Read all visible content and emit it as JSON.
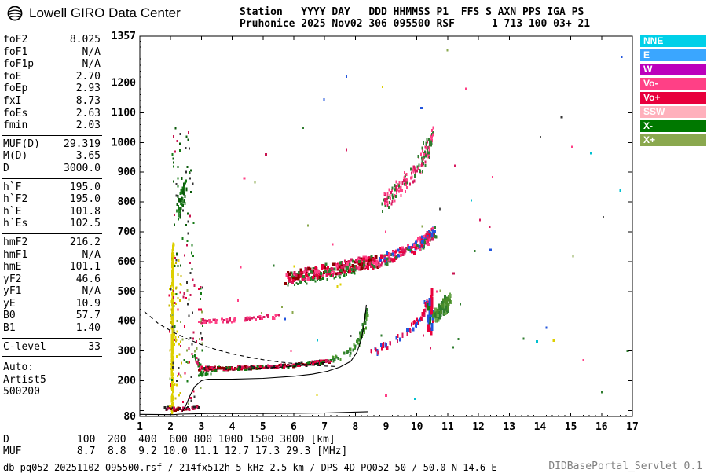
{
  "header": {
    "logo_title": "Lowell GIRO Data Center",
    "station_line1": "Station   YYYY DAY   DDD HHMMSS P1  FFS S AXN PPS IGA PS",
    "station_line2": "Pruhonice 2025 Nov02 306 095500 RSF      1 713 100 03+ 21"
  },
  "params": {
    "groups": [
      {
        "items": [
          {
            "label": "foF2",
            "value": "8.025"
          },
          {
            "label": "foF1",
            "value": "N/A"
          },
          {
            "label": "foF1p",
            "value": "N/A"
          },
          {
            "label": "foE",
            "value": "2.70"
          },
          {
            "label": "foEp",
            "value": "2.93"
          },
          {
            "label": "fxI",
            "value": "8.73"
          },
          {
            "label": "foEs",
            "value": "2.63"
          },
          {
            "label": "fmin",
            "value": "2.03"
          }
        ]
      },
      {
        "items": [
          {
            "label": "MUF(D)",
            "value": "29.319"
          },
          {
            "label": "M(D)",
            "value": "3.65"
          },
          {
            "label": "D",
            "value": "3000.0"
          }
        ]
      },
      {
        "items": [
          {
            "label": "h`F",
            "value": "195.0"
          },
          {
            "label": "h`F2",
            "value": "195.0"
          },
          {
            "label": "h`E",
            "value": "101.8"
          },
          {
            "label": "h`Es",
            "value": "102.5"
          }
        ]
      },
      {
        "items": [
          {
            "label": "hmF2",
            "value": "216.2"
          },
          {
            "label": "hmF1",
            "value": "N/A"
          },
          {
            "label": "hmE",
            "value": "101.1"
          },
          {
            "label": "yF2",
            "value": "46.6"
          },
          {
            "label": "yF1",
            "value": "N/A"
          },
          {
            "label": "yE",
            "value": "10.9"
          },
          {
            "label": "B0",
            "value": "57.7"
          },
          {
            "label": "B1",
            "value": "1.40"
          }
        ]
      },
      {
        "items": [
          {
            "label": "C-level",
            "value": "33"
          }
        ]
      }
    ],
    "auto_block": [
      "Auto:",
      "Artist5",
      "500200"
    ]
  },
  "legend": {
    "items": [
      {
        "label": "NNE",
        "color": "#00d0e8"
      },
      {
        "label": "E",
        "color": "#3aa6ff"
      },
      {
        "label": "W",
        "color": "#bc00bc"
      },
      {
        "label": "Vo-",
        "color": "#ff4086"
      },
      {
        "label": "Vo+",
        "color": "#e8003c"
      },
      {
        "label": "SSW",
        "color": "#ffb0bc"
      },
      {
        "label": "X-",
        "color": "#007800"
      },
      {
        "label": "X+",
        "color": "#8aa84e"
      }
    ]
  },
  "distance_muf": {
    "d_line": "D           100  200  400  600 800 1000 1500 3000 [km]",
    "muf_line": "MUF         8.7  8.8  9.2 10.0 11.1 12.7 17.3 29.3 [MHz]"
  },
  "footer": {
    "left": "db pq052 20251102 095500.rsf / 214fx512h 5 kHz 2.5 km / DPS-4D PQ052 50 / 50.0 N 14.6 E",
    "right": "DIDBasePortal_Servlet 0.1"
  },
  "chart_data": {
    "type": "scatter",
    "title": "Pruhonice ionogram 2025 Nov02 306 095500",
    "x_unit": "MHz",
    "y_unit": "km",
    "xlim": [
      1,
      17
    ],
    "ylim": [
      80,
      1357
    ],
    "x_ticks": [
      1,
      2,
      3,
      4,
      5,
      6,
      7,
      8,
      9,
      10,
      11,
      12,
      13,
      14,
      15,
      16,
      17
    ],
    "y_tick_labels": [
      1357,
      1200,
      1100,
      1000,
      900,
      800,
      700,
      600,
      500,
      400,
      300,
      200,
      80
    ],
    "grid": false,
    "legend_position": "right-outside",
    "muf_table": {
      "distance_km": [
        100,
        200,
        400,
        600,
        800,
        1000,
        1500,
        3000
      ],
      "muf_mhz": [
        8.7,
        8.8,
        9.2,
        10.0,
        11.1,
        12.7,
        17.3,
        29.3
      ]
    },
    "clusters": [
      {
        "name": "interference-column",
        "colors": [
          "#ddcf00"
        ],
        "size": [
          2,
          4
        ],
        "n": 300,
        "path": [
          [
            2.05,
            95
          ],
          [
            2.08,
            660
          ]
        ],
        "jitter": [
          0.03,
          6
        ]
      },
      {
        "name": "interference-scatter",
        "colors": [
          "#ddcf00",
          "#c8b800"
        ],
        "size": [
          2,
          3
        ],
        "n": 55,
        "box": [
          1.95,
          95,
          2.35,
          620
        ]
      },
      {
        "name": "noise-low",
        "colors": [
          "#157a15",
          "#c81450",
          "#333333",
          "#8aa84e",
          "#e8003c"
        ],
        "size": [
          2,
          3
        ],
        "n": 90,
        "box": [
          1.95,
          100,
          3.05,
          520
        ]
      },
      {
        "name": "noise-high",
        "colors": [
          "#157a15",
          "#0a5a0a",
          "#c81450",
          "#333333"
        ],
        "size": [
          2,
          3
        ],
        "n": 60,
        "box": [
          2.05,
          520,
          2.75,
          1060
        ]
      },
      {
        "name": "green-patch-800",
        "colors": [
          "#157a15",
          "#0a5a0a",
          "#3a8c3a"
        ],
        "size": [
          2,
          4
        ],
        "n": 60,
        "path": [
          [
            2.25,
            755
          ],
          [
            2.45,
            855
          ]
        ],
        "jitter": [
          0.1,
          30
        ]
      },
      {
        "name": "es-trace",
        "colors": [
          "#c81450",
          "#8b0000",
          "#222222"
        ],
        "size": [
          3,
          3
        ],
        "n": 40,
        "path": [
          [
            1.8,
            107
          ],
          [
            2.4,
            104
          ],
          [
            2.95,
            112
          ]
        ],
        "jitter": [
          0.07,
          5
        ]
      },
      {
        "name": "f-trace-start-hook",
        "colors": [
          "#ff4086",
          "#d81b60",
          "#157a15"
        ],
        "size": [
          2,
          3
        ],
        "n": 25,
        "path": [
          [
            2.8,
            280
          ],
          [
            2.9,
            255
          ],
          [
            3.0,
            242
          ]
        ],
        "jitter": [
          0.04,
          8
        ]
      },
      {
        "name": "f-trace-lead-green",
        "colors": [
          "#157a15"
        ],
        "size": [
          2,
          3
        ],
        "n": 28,
        "path": [
          [
            2.9,
            225
          ],
          [
            3.3,
            232
          ]
        ],
        "jitter": [
          0.06,
          10
        ]
      },
      {
        "name": "f-trace",
        "colors": [
          "#d81b60",
          "#8b0000",
          "#157a15",
          "#222222",
          "#e8003c"
        ],
        "size": [
          3,
          3
        ],
        "n": 240,
        "path": [
          [
            2.95,
            240
          ],
          [
            3.5,
            240
          ],
          [
            4.5,
            243
          ],
          [
            5.5,
            248
          ],
          [
            6.5,
            257
          ],
          [
            7.2,
            267
          ]
        ],
        "jitter": [
          0.05,
          6
        ]
      },
      {
        "name": "f-rise-green",
        "colors": [
          "#2f7d2f",
          "#4a9a2a"
        ],
        "size": [
          2,
          4
        ],
        "n": 80,
        "path": [
          [
            7.2,
            268
          ],
          [
            7.8,
            295
          ],
          [
            8.1,
            330
          ],
          [
            8.3,
            385
          ],
          [
            8.4,
            440
          ]
        ],
        "jitter": [
          0.05,
          10
        ]
      },
      {
        "name": "x-mode-rise",
        "colors": [
          "#2255dd",
          "#e8003c",
          "#d81b60"
        ],
        "size": [
          2,
          5
        ],
        "n": 70,
        "path": [
          [
            8.55,
            295
          ],
          [
            9.2,
            325
          ],
          [
            9.8,
            365
          ],
          [
            10.2,
            415
          ],
          [
            10.35,
            465
          ]
        ],
        "jitter": [
          0.07,
          12
        ]
      },
      {
        "name": "asymptote-strokes",
        "colors": [
          "#2255dd",
          "#e8003c",
          "#157a15"
        ],
        "size": [
          3,
          10
        ],
        "n": 24,
        "path": [
          [
            10.42,
            400
          ],
          [
            10.5,
            470
          ]
        ],
        "jitter": [
          0.07,
          45
        ]
      },
      {
        "name": "green-cusp",
        "colors": [
          "#4a8c2a",
          "#2f7d2f",
          "#6aa84f"
        ],
        "size": [
          3,
          5
        ],
        "n": 90,
        "path": [
          [
            10.55,
            415
          ],
          [
            10.75,
            430
          ],
          [
            10.95,
            455
          ],
          [
            11.05,
            475
          ]
        ],
        "jitter": [
          0.07,
          22
        ]
      },
      {
        "name": "second-hop-low",
        "colors": [
          "#ff4086",
          "#d81b60"
        ],
        "size": [
          3,
          3
        ],
        "n": 55,
        "path": [
          [
            3.0,
            398
          ],
          [
            3.8,
            403
          ],
          [
            4.6,
            408
          ],
          [
            5.5,
            416
          ]
        ],
        "jitter": [
          0.09,
          7
        ]
      },
      {
        "name": "second-hop-green-edge",
        "colors": [
          "#2f7d2f",
          "#157a15"
        ],
        "size": [
          2,
          3
        ],
        "n": 60,
        "path": [
          [
            5.8,
            525
          ],
          [
            6.6,
            540
          ],
          [
            7.4,
            556
          ],
          [
            8.2,
            572
          ]
        ],
        "jitter": [
          0.1,
          10
        ]
      },
      {
        "name": "second-hop-mid",
        "colors": [
          "#ff4086",
          "#d81b60",
          "#e8003c",
          "#2f7d2f",
          "#8b0000"
        ],
        "size": [
          3,
          4
        ],
        "n": 280,
        "path": [
          [
            5.8,
            545
          ],
          [
            6.6,
            560
          ],
          [
            7.4,
            576
          ],
          [
            8.2,
            592
          ],
          [
            8.7,
            600
          ]
        ],
        "jitter": [
          0.12,
          20
        ]
      },
      {
        "name": "second-hop-rise",
        "colors": [
          "#ff4086",
          "#d81b60",
          "#2f7d2f",
          "#2255dd",
          "#e8003c"
        ],
        "size": [
          3,
          4
        ],
        "n": 170,
        "path": [
          [
            8.75,
            600
          ],
          [
            9.3,
            620
          ],
          [
            9.9,
            648
          ],
          [
            10.35,
            680
          ],
          [
            10.55,
            700
          ]
        ],
        "jitter": [
          0.1,
          18
        ]
      },
      {
        "name": "third-hop-spread",
        "colors": [
          "#ff4086",
          "#2f7d2f",
          "#d81b60"
        ],
        "size": [
          2,
          4
        ],
        "n": 130,
        "path": [
          [
            8.85,
            790
          ],
          [
            9.3,
            830
          ],
          [
            9.8,
            885
          ],
          [
            10.2,
            945
          ],
          [
            10.45,
            1005
          ]
        ],
        "jitter": [
          0.1,
          28
        ]
      },
      {
        "name": "third-hop-top",
        "colors": [
          "#ff4086",
          "#2f7d2f"
        ],
        "size": [
          2,
          4
        ],
        "n": 35,
        "path": [
          [
            10.25,
            960
          ],
          [
            10.55,
            1035
          ]
        ],
        "jitter": [
          0.08,
          25
        ]
      },
      {
        "name": "sparse-background",
        "colors": [
          "#ff4086",
          "#2f7d2f",
          "#00c0d0",
          "#2255dd",
          "#d81b60",
          "#555555",
          "#ddcf00",
          "#8aa84e"
        ],
        "size": [
          2,
          3
        ],
        "n": 50,
        "box": [
          3.2,
          130,
          16.8,
          1320
        ]
      },
      {
        "name": "isolated-echoes",
        "points": [
          [
            13.9,
            332,
            "#00c0d0"
          ],
          [
            14.45,
            335,
            "#ddcf00"
          ],
          [
            16.85,
            300,
            "#2f7d2f"
          ],
          [
            10.15,
            1115,
            "#2255dd"
          ],
          [
            14.7,
            1085,
            "#333333"
          ],
          [
            12.4,
            640,
            "#2255dd"
          ],
          [
            11.2,
            560,
            "#c81450"
          ],
          [
            9.0,
            150,
            "#ff4086"
          ],
          [
            11.6,
            1180,
            "#ff4086"
          ],
          [
            6.3,
            1050,
            "#2f7d2f"
          ],
          [
            5.1,
            960,
            "#c81450"
          ],
          [
            4.4,
            880,
            "#ff4086"
          ],
          [
            15.05,
            985,
            "#ff4086"
          ],
          [
            9.95,
            140,
            "#00c0d0"
          ]
        ]
      }
    ],
    "lines": [
      {
        "name": "bottom-profile",
        "style": "solid",
        "points": [
          [
            1.0,
            87
          ],
          [
            2.1,
            86
          ],
          [
            2.3,
            88
          ],
          [
            3.2,
            90
          ],
          [
            5.0,
            90
          ],
          [
            7.0,
            92
          ],
          [
            8.4,
            96
          ]
        ]
      },
      {
        "name": "e-f-valley",
        "style": "solid",
        "points": [
          [
            2.38,
            97
          ],
          [
            2.5,
            118
          ],
          [
            2.62,
            148
          ],
          [
            2.78,
            180
          ],
          [
            3.0,
            200
          ],
          [
            3.2,
            205
          ]
        ]
      },
      {
        "name": "f-trace-fit",
        "style": "solid",
        "points": [
          [
            3.2,
            205
          ],
          [
            4.0,
            205
          ],
          [
            5.0,
            208
          ],
          [
            6.0,
            215
          ],
          [
            6.6,
            222
          ],
          [
            7.1,
            232
          ],
          [
            7.5,
            246
          ],
          [
            7.85,
            265
          ],
          [
            8.05,
            295
          ],
          [
            8.2,
            340
          ],
          [
            8.3,
            400
          ],
          [
            8.36,
            455
          ]
        ]
      },
      {
        "name": "muf-transmission-curve",
        "style": "dashed",
        "points": [
          [
            1.15,
            432
          ],
          [
            1.6,
            392
          ],
          [
            2.1,
            362
          ],
          [
            2.6,
            338
          ],
          [
            3.1,
            317
          ],
          [
            3.6,
            301
          ],
          [
            4.1,
            288
          ],
          [
            4.6,
            278
          ],
          [
            5.1,
            269
          ],
          [
            5.6,
            262
          ],
          [
            6.1,
            257
          ],
          [
            6.6,
            252
          ],
          [
            7.05,
            249
          ],
          [
            7.35,
            248
          ]
        ]
      },
      {
        "name": "trace-dashed-overlay",
        "style": "dashed",
        "points": [
          [
            3.0,
            238
          ],
          [
            4.5,
            240
          ],
          [
            6.0,
            248
          ],
          [
            7.1,
            262
          ]
        ]
      }
    ]
  }
}
